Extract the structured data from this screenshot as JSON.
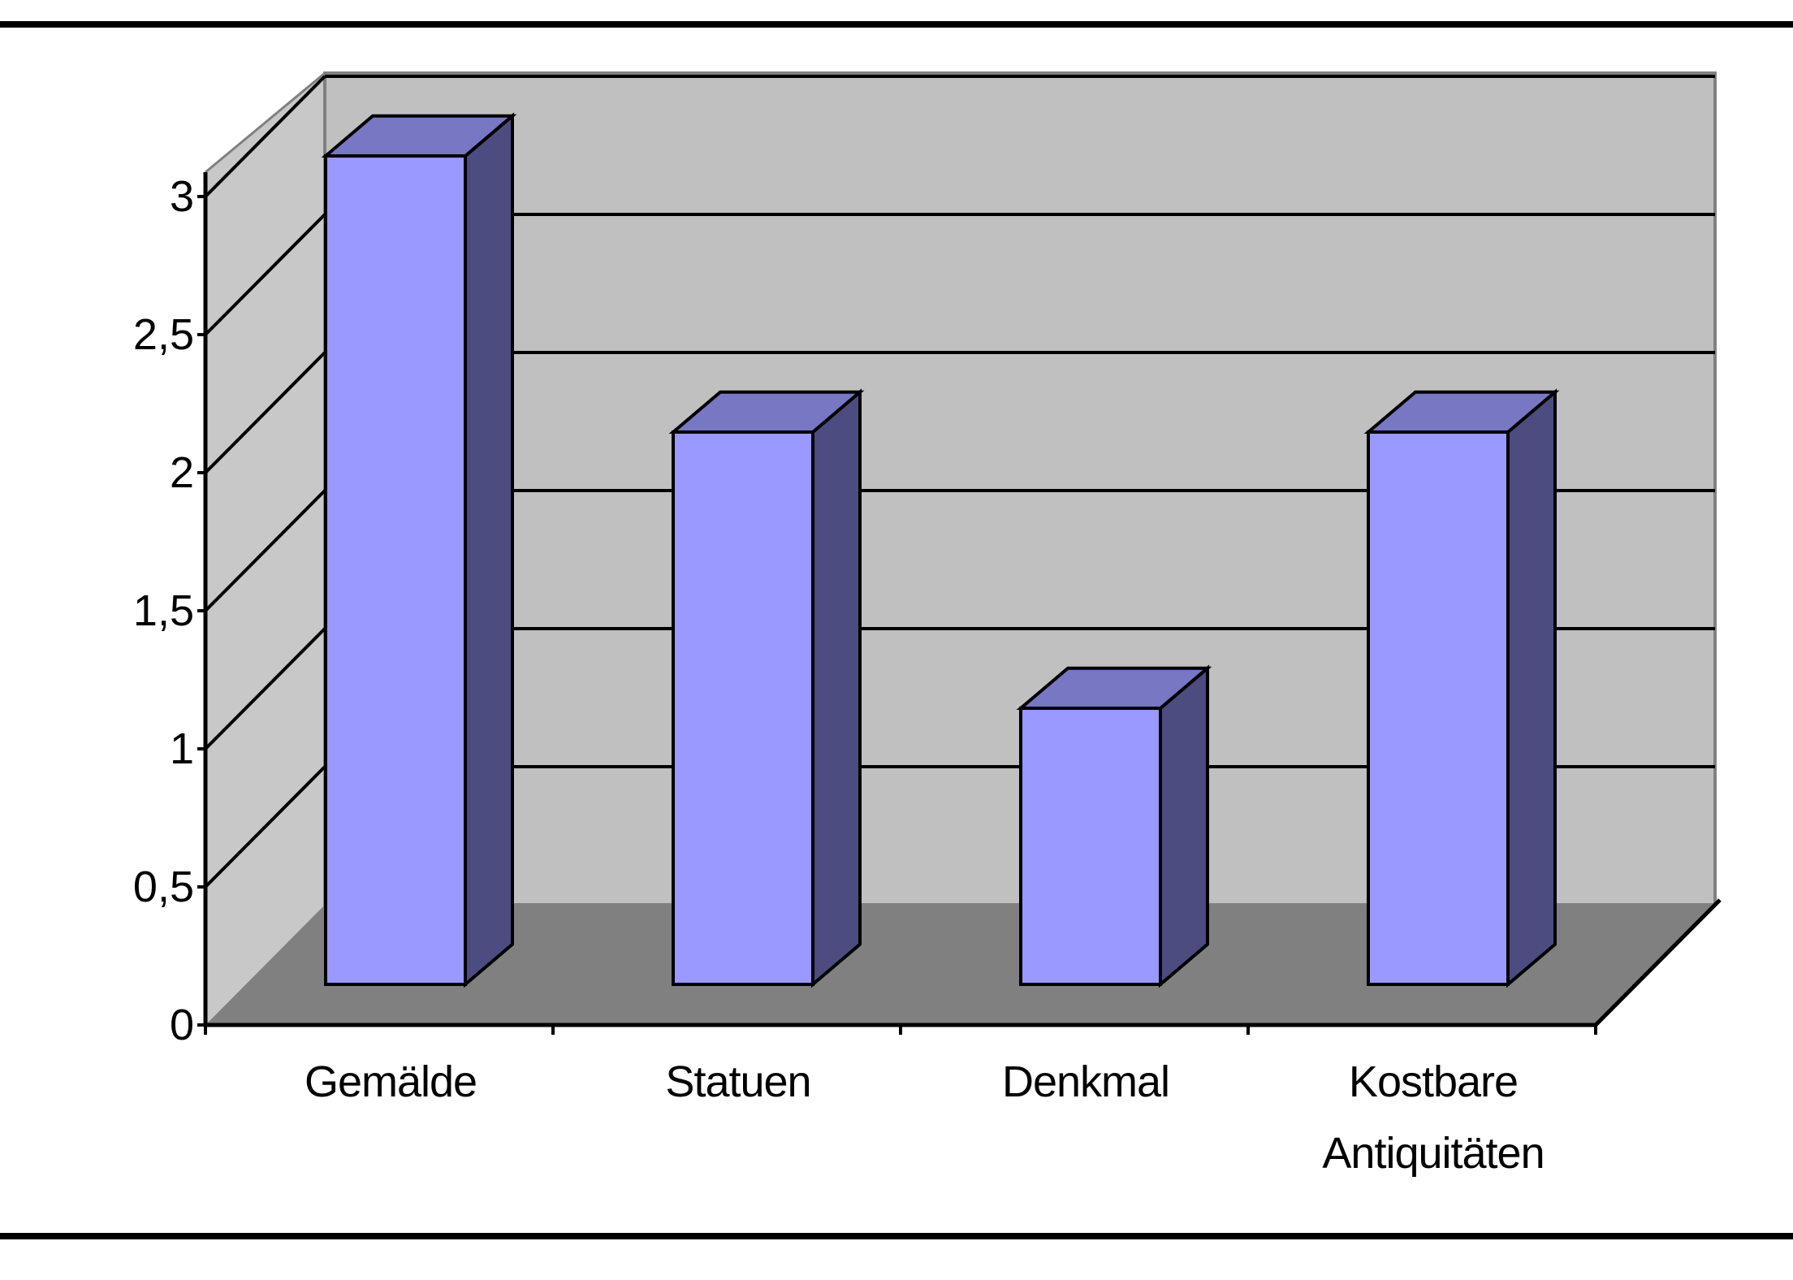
{
  "chart_data": {
    "type": "bar",
    "categories": [
      "Gemälde",
      "Statuen",
      "Denkmal",
      "Kostbare Antiquitäten"
    ],
    "category_lines": [
      [
        "Gemälde"
      ],
      [
        "Statuen"
      ],
      [
        "Denkmal"
      ],
      [
        "Kostbare",
        "Antiquitäten"
      ]
    ],
    "values": [
      3,
      2,
      1,
      2
    ],
    "ylim": [
      0,
      3
    ],
    "yticks": [
      0,
      0.5,
      1,
      1.5,
      2,
      2.5,
      3
    ],
    "ytick_labels": [
      "0",
      "0,5",
      "1",
      "1,5",
      "2",
      "2,5",
      "3"
    ],
    "grid": true,
    "style": "3d-column",
    "colors": {
      "bar_front": "#9999FF",
      "bar_top": "#7777C4",
      "bar_side": "#4C4C80",
      "back_wall": "#C0C0C0",
      "side_wall": "#C8C8C8",
      "floor": "#808080"
    }
  }
}
